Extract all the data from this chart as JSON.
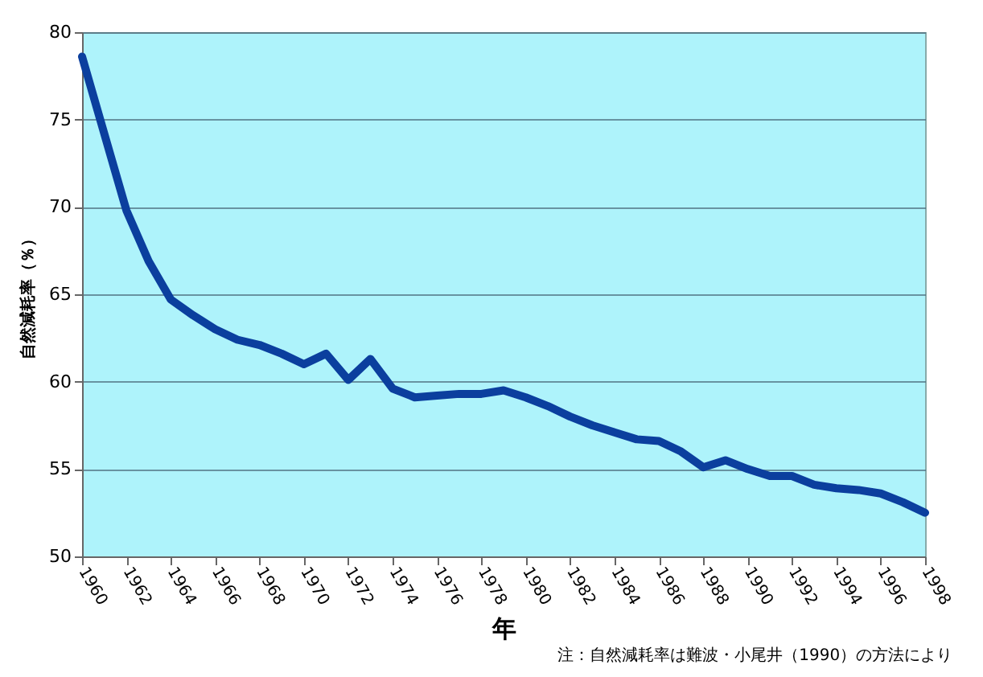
{
  "chart_data": {
    "type": "line",
    "xlabel": "年",
    "ylabel": "自然減耗率（％）",
    "x": [
      1960,
      1961,
      1962,
      1963,
      1964,
      1965,
      1966,
      1967,
      1968,
      1969,
      1970,
      1971,
      1972,
      1973,
      1974,
      1975,
      1976,
      1977,
      1978,
      1979,
      1980,
      1981,
      1982,
      1983,
      1984,
      1985,
      1986,
      1987,
      1988,
      1989,
      1990,
      1991,
      1992,
      1993,
      1994,
      1995,
      1996,
      1997,
      1998
    ],
    "series": [
      {
        "color": "#0b3f9e",
        "values": [
          78.6,
          74.2,
          69.8,
          66.9,
          64.7,
          63.8,
          63.0,
          62.4,
          62.1,
          61.6,
          61.0,
          61.6,
          60.1,
          61.3,
          59.6,
          59.1,
          59.2,
          59.3,
          59.3,
          59.5,
          59.1,
          58.6,
          58.0,
          57.5,
          57.1,
          56.7,
          56.6,
          56.0,
          55.1,
          55.5,
          55.0,
          54.6,
          54.6,
          54.1,
          53.9,
          53.8,
          53.6,
          53.1,
          52.5
        ]
      }
    ],
    "xlim": [
      1960,
      1998
    ],
    "xticks": [
      1960,
      1962,
      1964,
      1966,
      1968,
      1970,
      1972,
      1974,
      1976,
      1978,
      1980,
      1982,
      1984,
      1986,
      1988,
      1990,
      1992,
      1994,
      1996,
      1998
    ],
    "ylim": [
      50,
      80
    ],
    "yticks": [
      50,
      55,
      60,
      65,
      70,
      75,
      80
    ],
    "grid": "y",
    "legend": false,
    "marker": "none",
    "line_style": "solid",
    "annotations": [
      "注：自然減耗率は難波・小尾井（1990）の方法により"
    ]
  }
}
